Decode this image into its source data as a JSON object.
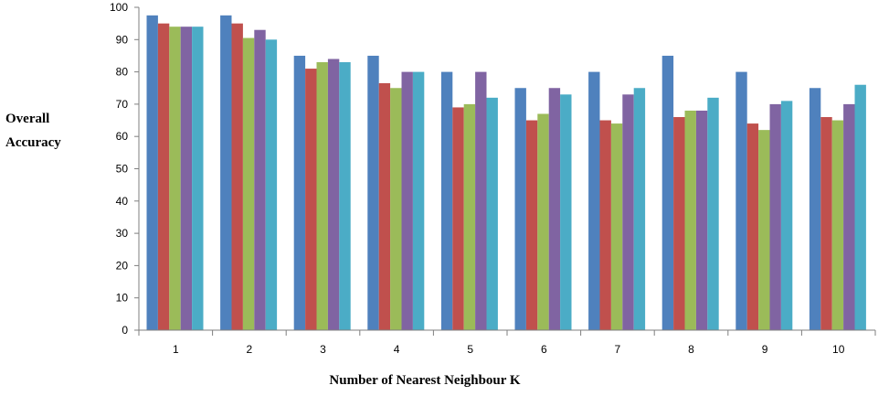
{
  "chart_data": {
    "type": "bar",
    "title": "",
    "xlabel": "Number of Nearest Neighbour K",
    "ylabel_lines": [
      "Overall",
      "Accuracy"
    ],
    "categories": [
      "1",
      "2",
      "3",
      "4",
      "5",
      "6",
      "7",
      "8",
      "9",
      "10"
    ],
    "ylim": [
      0,
      100
    ],
    "yticks": [
      0,
      10,
      20,
      30,
      40,
      50,
      60,
      70,
      80,
      90,
      100
    ],
    "grid": false,
    "legend": "none",
    "series": [
      {
        "color": "#4F81BD",
        "values": [
          97.5,
          97.5,
          85,
          85,
          80,
          75,
          80,
          85,
          80,
          75
        ]
      },
      {
        "color": "#C0504D",
        "values": [
          95,
          95,
          81,
          76.5,
          69,
          65,
          65,
          66,
          64,
          66
        ]
      },
      {
        "color": "#9BBB59",
        "values": [
          94,
          90.5,
          83,
          75,
          70,
          67,
          64,
          68,
          62,
          65
        ]
      },
      {
        "color": "#8064A2",
        "values": [
          94,
          93,
          84,
          80,
          80,
          75,
          73,
          68,
          70,
          70
        ]
      },
      {
        "color": "#4BACC6",
        "values": [
          94,
          90,
          83,
          80,
          72,
          73,
          75,
          72,
          71,
          76
        ]
      }
    ]
  }
}
